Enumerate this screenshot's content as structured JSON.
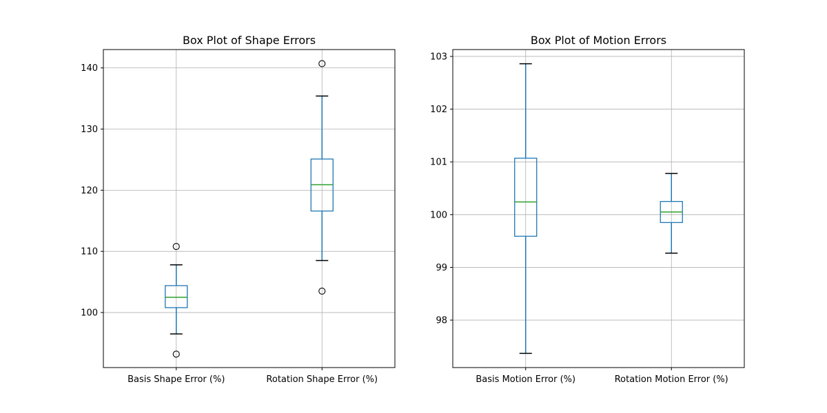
{
  "chart_data": [
    {
      "type": "box",
      "title": "Box Plot of Shape Errors",
      "categories": [
        "Basis Shape Error (%)",
        "Rotation Shape Error (%)"
      ],
      "ylim": [
        91.0,
        143.0
      ],
      "yticks": [
        100,
        110,
        120,
        130,
        140
      ],
      "grid": true,
      "boxes": [
        {
          "whisker_low": 96.5,
          "q1": 100.8,
          "median": 102.5,
          "q3": 104.4,
          "whisker_high": 107.8,
          "outliers": [
            93.2,
            110.8
          ]
        },
        {
          "whisker_low": 108.5,
          "q1": 116.6,
          "median": 120.9,
          "q3": 125.1,
          "whisker_high": 135.4,
          "outliers": [
            103.5,
            140.7
          ]
        }
      ]
    },
    {
      "type": "box",
      "title": "Box Plot of Motion Errors",
      "categories": [
        "Basis Motion Error (%)",
        "Rotation Motion Error (%)"
      ],
      "ylim": [
        97.1,
        103.13
      ],
      "yticks": [
        98,
        99,
        100,
        101,
        102,
        103
      ],
      "grid": true,
      "boxes": [
        {
          "whisker_low": 97.37,
          "q1": 99.59,
          "median": 100.24,
          "q3": 101.07,
          "whisker_high": 102.86,
          "outliers": []
        },
        {
          "whisker_low": 99.27,
          "q1": 99.85,
          "median": 100.05,
          "q3": 100.25,
          "whisker_high": 100.78,
          "outliers": []
        }
      ]
    }
  ],
  "colors": {
    "box": "#1f77b4",
    "median": "#2ca02c",
    "cap": "#000000",
    "grid": "#b0b0b0",
    "axes": "#000000"
  }
}
